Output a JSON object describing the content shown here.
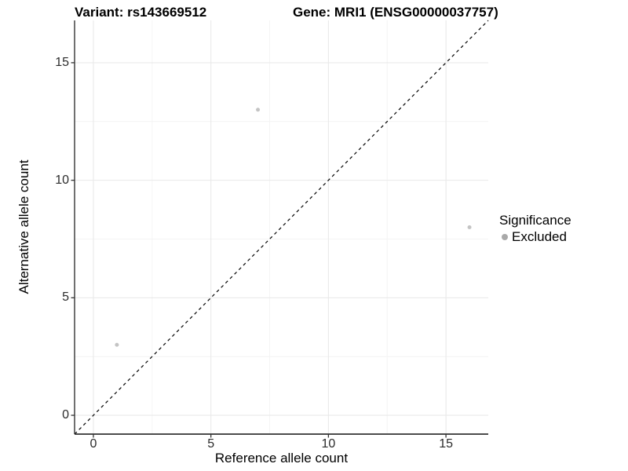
{
  "header": {
    "variant_title": "Variant: rs143669512",
    "gene_title": "Gene: MRI1 (ENSG00000037757)"
  },
  "legend": {
    "title": "Significance",
    "items": [
      {
        "label": "Excluded",
        "marker": "circle-icon",
        "color": "#a9a9a9"
      }
    ]
  },
  "colors": {
    "background": "#ffffff",
    "grid_major": "#e9e9e9",
    "grid_minor": "#f4f4f4",
    "axis_line": "#333333",
    "tick_mark": "#333333",
    "dashed_line": "#000000",
    "point": "#c4c4c4"
  },
  "chart_data": {
    "type": "scatter",
    "title": "Variant: rs143669512   Gene: MRI1 (ENSG00000037757)",
    "xlabel": "Reference allele count",
    "ylabel": "Alternative allele count",
    "xlim": [
      -0.8,
      16.8
    ],
    "ylim": [
      -0.8,
      16.8
    ],
    "x_ticks": [
      0,
      5,
      10,
      15
    ],
    "y_ticks": [
      0,
      5,
      10,
      15
    ],
    "x_minor_ticks": [
      2.5,
      7.5,
      12.5
    ],
    "y_minor_ticks": [
      2.5,
      7.5,
      12.5
    ],
    "grid": true,
    "legend_position": "right",
    "series": [
      {
        "name": "Excluded",
        "color": "#c4c4c4",
        "marker": "circle",
        "points": [
          [
            1,
            3
          ],
          [
            7,
            13
          ],
          [
            16,
            8
          ]
        ]
      }
    ],
    "reference_line": {
      "kind": "identity",
      "style": "dashed",
      "color": "#000000",
      "from": [
        -0.8,
        -0.8
      ],
      "to": [
        16.8,
        16.8
      ]
    }
  }
}
